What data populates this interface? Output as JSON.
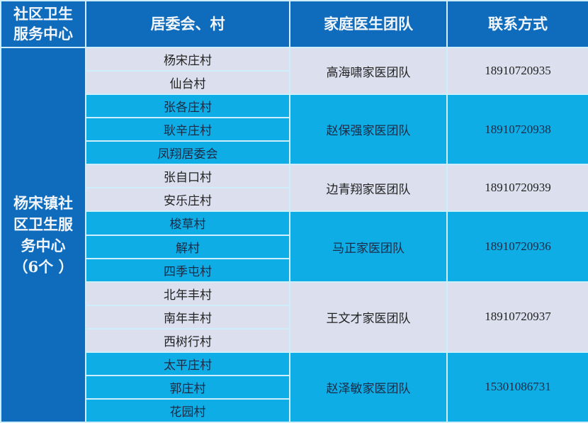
{
  "header": {
    "col1": "社区卫生服务中心",
    "col1_line1": "社区卫生",
    "col1_line2": "服务中心",
    "col2": "居委会、村",
    "col3": "家庭医生团队",
    "col4": "联系方式"
  },
  "center": {
    "line1": "杨宋镇社",
    "line2": "区卫生服",
    "line3": "务中心",
    "line4": "（6个 ）"
  },
  "colors": {
    "header": "#0f6cbd",
    "light_row": "#dcdfee",
    "cyan_row": "#0fade6"
  },
  "groups": [
    {
      "villages": [
        "杨宋庄村",
        "仙台村"
      ],
      "team": "高海啸家医团队",
      "phone": "18910720935",
      "style": "light"
    },
    {
      "villages": [
        "张各庄村",
        "耿辛庄村",
        "凤翔居委会"
      ],
      "team": "赵保强家医团队",
      "phone": "18910720938",
      "style": "cyan"
    },
    {
      "villages": [
        "张自口村",
        "安乐庄村"
      ],
      "team": "边青翔家医团队",
      "phone": "18910720939",
      "style": "light"
    },
    {
      "villages": [
        "梭草村",
        "解村",
        "四季屯村"
      ],
      "team": "马正家医团队",
      "phone": "18910720936",
      "style": "cyan"
    },
    {
      "villages": [
        "北年丰村",
        "南年丰村",
        "西树行村"
      ],
      "team": "王文才家医团队",
      "phone": "18910720937",
      "style": "light"
    },
    {
      "villages": [
        "太平庄村",
        "郭庄村",
        "花园村"
      ],
      "team": "赵泽敏家医团队",
      "phone": "15301086731",
      "style": "cyan"
    }
  ]
}
